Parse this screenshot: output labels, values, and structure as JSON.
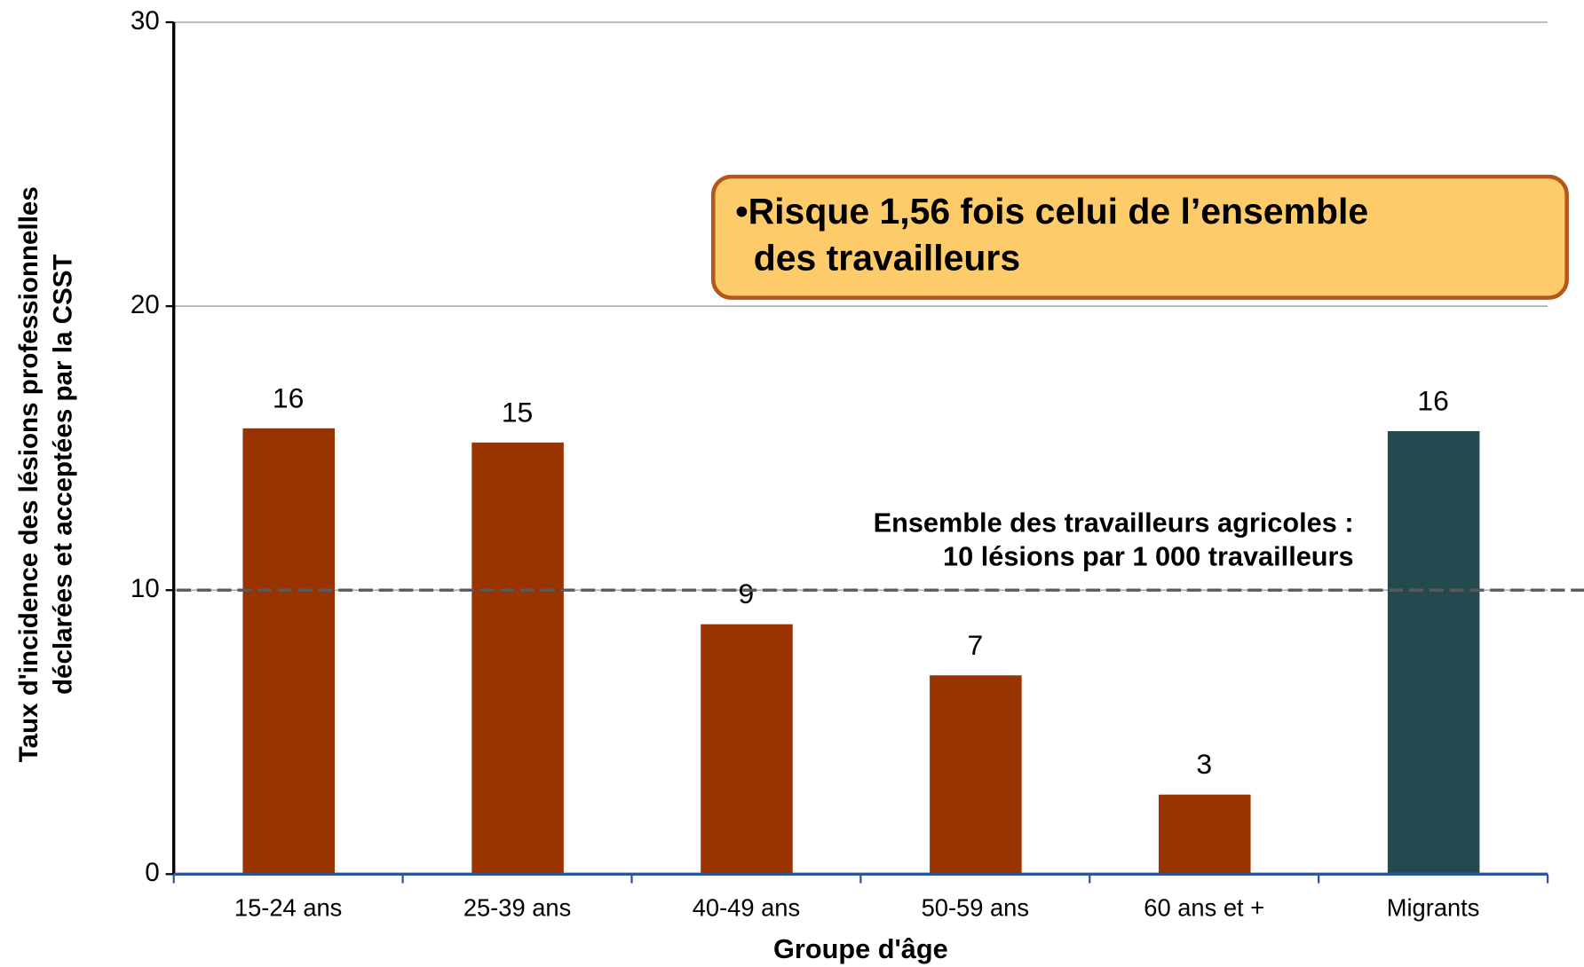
{
  "chart_data": {
    "type": "bar",
    "categories": [
      "15-24 ans",
      "25-39 ans",
      "40-49 ans",
      "50-59 ans",
      "60 ans et +",
      "Migrants"
    ],
    "values": [
      15.7,
      15.2,
      8.8,
      7.0,
      2.8,
      15.6
    ],
    "value_labels": [
      "16",
      "15",
      "9",
      "7",
      "3",
      "16"
    ],
    "colors": [
      "#993300",
      "#993300",
      "#993300",
      "#993300",
      "#993300",
      "#244a50"
    ],
    "ylim": [
      0,
      30
    ],
    "yticks": [
      0,
      10,
      20,
      30
    ],
    "grid": true,
    "x_label": "Groupe d'âge",
    "y_label": [
      "Taux d'incidence des lésions professionnelles",
      "déclarées et acceptées par la CSST"
    ],
    "reference_line": {
      "value": 10,
      "label": [
        "Ensemble des travailleurs agricoles :",
        "10 lésions par 1 000 travailleurs"
      ]
    },
    "annotation": [
      "•Risque 1,56 fois celui de l’ensemble",
      "des travailleurs"
    ]
  }
}
